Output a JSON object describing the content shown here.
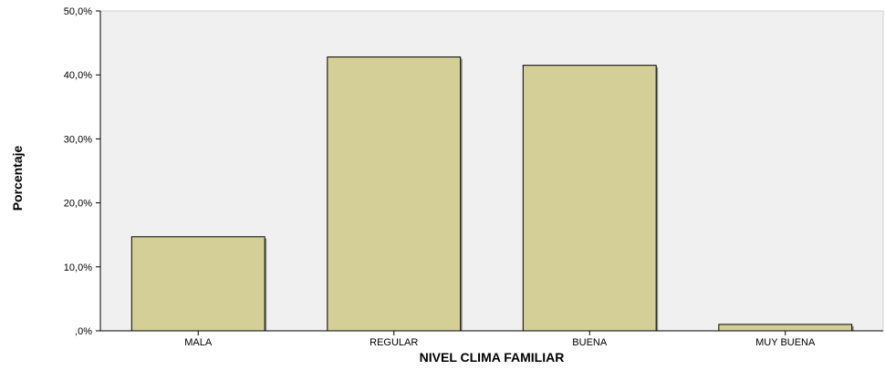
{
  "chart_data": {
    "type": "bar",
    "categories": [
      "MALA",
      "REGULAR",
      "BUENA",
      "MUY BUENA"
    ],
    "values": [
      14.7,
      42.8,
      41.5,
      1.0
    ],
    "xlabel": "NIVEL CLIMA FAMILIAR",
    "ylabel": "Porcentaje",
    "ylim": [
      0,
      50
    ],
    "yticks": [
      0,
      10,
      20,
      30,
      40,
      50
    ],
    "ytick_labels": [
      ",0%",
      "10,0%",
      "20,0%",
      "30,0%",
      "40,0%",
      "50,0%"
    ],
    "grid": false,
    "colors": {
      "plot_background": "#f0f0f0",
      "bar_fill": "#d4cf97",
      "bar_stroke": "#000000",
      "bar_shadow": "#8a8a8a",
      "axis": "#000000"
    }
  }
}
